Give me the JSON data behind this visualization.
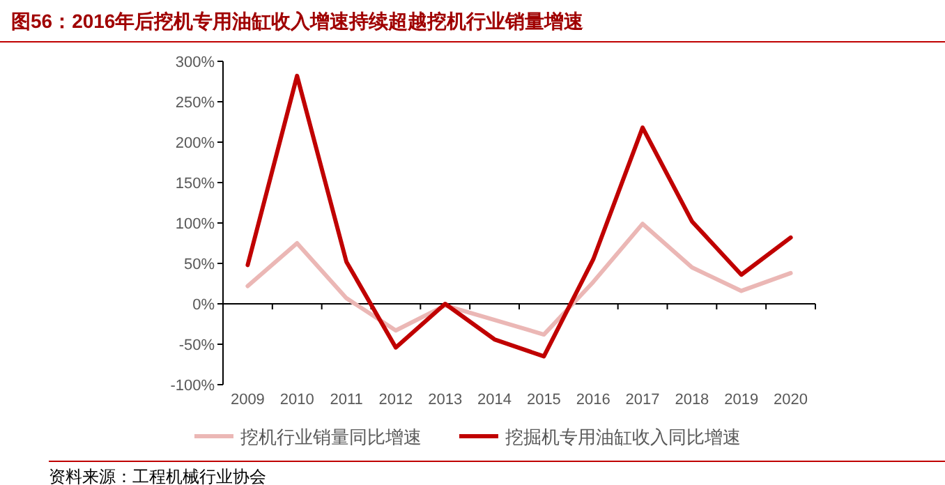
{
  "chart_data": {
    "type": "line",
    "title": "图56：2016年后挖机专用油缸收入增速持续超越挖机行业销量增速",
    "categories": [
      "2009",
      "2010",
      "2011",
      "2012",
      "2013",
      "2014",
      "2015",
      "2016",
      "2017",
      "2018",
      "2019",
      "2020"
    ],
    "series": [
      {
        "name": "挖机行业销量同比增速",
        "color": "#ebb7b5",
        "values": [
          22,
          75,
          7,
          -33,
          -2,
          -20,
          -38,
          27,
          99,
          45,
          16,
          38
        ]
      },
      {
        "name": "挖掘机专用油缸收入同比增速",
        "color": "#c00000",
        "values": [
          48,
          282,
          52,
          -54,
          0,
          -44,
          -65,
          55,
          218,
          102,
          36,
          82
        ]
      }
    ],
    "ylim": [
      -100,
      300
    ],
    "yticks": [
      {
        "value": -100,
        "label": "-100%"
      },
      {
        "value": -50,
        "label": "-50%"
      },
      {
        "value": 0,
        "label": "0%"
      },
      {
        "value": 50,
        "label": "50%"
      },
      {
        "value": 100,
        "label": "100%"
      },
      {
        "value": 150,
        "label": "150%"
      },
      {
        "value": 200,
        "label": "200%"
      },
      {
        "value": 250,
        "label": "250%"
      },
      {
        "value": 300,
        "label": "300%"
      }
    ],
    "legend": "bottom",
    "marker": "none",
    "line_style": "solid",
    "annotations": [
      "资料来源：工程机械行业协会"
    ]
  }
}
